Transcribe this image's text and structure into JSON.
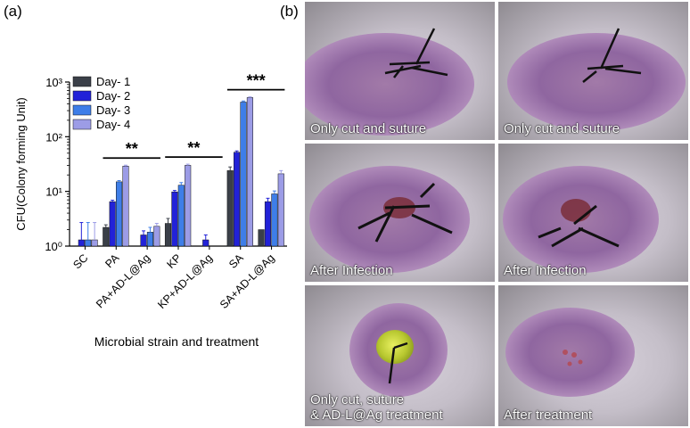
{
  "panels": {
    "a": "(a)",
    "b": "(b)"
  },
  "chart_data": {
    "type": "bar",
    "ylabel": "CFU(Colony forming Unit)",
    "xlabel": "Microbial strain and treatment",
    "yscale": "log",
    "ylim": [
      1,
      1000
    ],
    "y_ticks": [
      "10⁰",
      "10¹",
      "10²",
      "10³"
    ],
    "categories": [
      "SC",
      "PA",
      "PA+AD-L@Ag",
      "KP",
      "KP+AD-L@Ag",
      "SA",
      "SA+AD-L@Ag"
    ],
    "series": [
      {
        "name": "Day- 1",
        "color": "#3a3f48",
        "values": [
          1.0,
          2.2,
          1.0,
          2.6,
          1.0,
          24,
          2.0
        ],
        "errors": [
          0,
          0.25,
          0,
          0.6,
          0,
          4,
          0
        ]
      },
      {
        "name": "Day- 2",
        "color": "#2222d8",
        "values": [
          1.3,
          6.5,
          1.6,
          9.8,
          1.3,
          52,
          6.5
        ],
        "errors": [
          1.4,
          0.4,
          0.3,
          0.6,
          0.3,
          3,
          1.0
        ]
      },
      {
        "name": "Day- 3",
        "color": "#3e7ee8",
        "values": [
          1.3,
          15,
          1.8,
          13,
          1.0,
          430,
          9.0
        ],
        "errors": [
          1.4,
          0.8,
          0.4,
          1.5,
          0,
          20,
          1.2
        ]
      },
      {
        "name": "Day- 4",
        "color": "#9c9ce6",
        "values": [
          1.3,
          29,
          2.3,
          30,
          1.0,
          520,
          21
        ],
        "errors": [
          1.4,
          1.2,
          0.3,
          1.5,
          0,
          15,
          3
        ]
      }
    ],
    "significance": [
      {
        "label": "**",
        "from": 1,
        "to": 2
      },
      {
        "label": "**",
        "from": 3,
        "to": 4
      },
      {
        "label": "***",
        "from": 5,
        "to": 6
      }
    ],
    "legend_position": "top-right",
    "grid": false
  },
  "photos": [
    {
      "caption": [
        "Only cut and suture"
      ]
    },
    {
      "caption": [
        "Only cut and suture"
      ]
    },
    {
      "caption": [
        "After Infection"
      ]
    },
    {
      "caption": [
        "After Infection"
      ]
    },
    {
      "caption": [
        "Only cut, suture",
        "& AD-L@Ag treatment"
      ]
    },
    {
      "caption": [
        "After treatment"
      ]
    }
  ]
}
